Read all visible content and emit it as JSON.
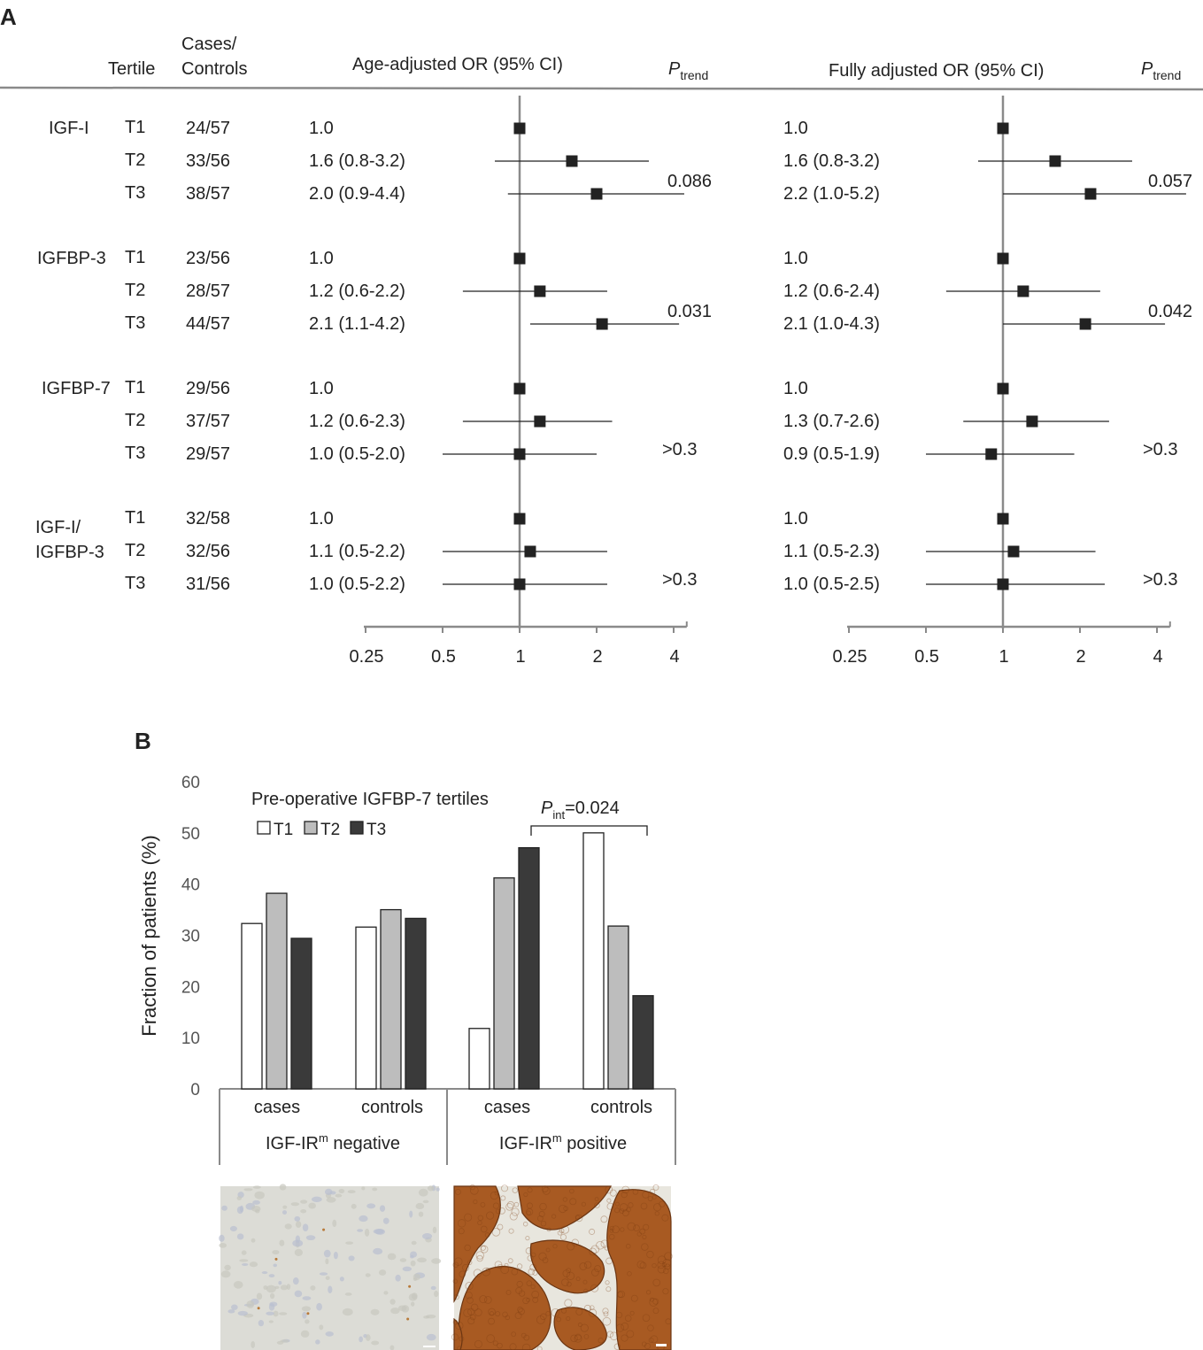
{
  "panel_a": {
    "label": "A",
    "headers": {
      "tertile": "Tertile",
      "cases_controls_line1": "Cases/",
      "cases_controls_line2": "Controls",
      "age_adjusted": "Age-adjusted OR (95% CI)",
      "fully_adjusted": "Fully adjusted OR (95% CI)",
      "p_trend_main": "P",
      "p_trend_sub": "trend"
    },
    "groups": [
      {
        "name_lines": [
          "IGF-I"
        ],
        "rows": [
          {
            "tertile": "T1",
            "cc": "24/57",
            "age_text": "1.0",
            "full_text": "1.0"
          },
          {
            "tertile": "T2",
            "cc": "33/56",
            "age_text": "1.6 (0.8-3.2)",
            "full_text": "1.6 (0.8-3.2)"
          },
          {
            "tertile": "T3",
            "cc": "38/57",
            "age_text": "2.0 (0.9-4.4)",
            "full_text": "2.2 (1.0-5.2)"
          }
        ],
        "p_age": "0.086",
        "p_full": "0.057"
      },
      {
        "name_lines": [
          "IGFBP-3"
        ],
        "rows": [
          {
            "tertile": "T1",
            "cc": "23/56",
            "age_text": "1.0",
            "full_text": "1.0"
          },
          {
            "tertile": "T2",
            "cc": "28/57",
            "age_text": "1.2 (0.6-2.2)",
            "full_text": "1.2 (0.6-2.4)"
          },
          {
            "tertile": "T3",
            "cc": "44/57",
            "age_text": "2.1 (1.1-4.2)",
            "full_text": "2.1 (1.0-4.3)"
          }
        ],
        "p_age": "0.031",
        "p_full": "0.042"
      },
      {
        "name_lines": [
          "IGFBP-7"
        ],
        "rows": [
          {
            "tertile": "T1",
            "cc": "29/56",
            "age_text": "1.0",
            "full_text": "1.0"
          },
          {
            "tertile": "T2",
            "cc": "37/57",
            "age_text": "1.2 (0.6-2.3)",
            "full_text": "1.3 (0.7-2.6)"
          },
          {
            "tertile": "T3",
            "cc": "29/57",
            "age_text": "1.0 (0.5-2.0)",
            "full_text": "0.9 (0.5-1.9)"
          }
        ],
        "p_age": ">0.3",
        "p_full": ">0.3"
      },
      {
        "name_lines": [
          "IGF-I/",
          "IGFBP-3"
        ],
        "rows": [
          {
            "tertile": "T1",
            "cc": "32/58",
            "age_text": "1.0",
            "full_text": "1.0"
          },
          {
            "tertile": "T2",
            "cc": "32/56",
            "age_text": "1.1 (0.5-2.2)",
            "full_text": "1.1 (0.5-2.3)"
          },
          {
            "tertile": "T3",
            "cc": "31/56",
            "age_text": "1.0 (0.5-2.2)",
            "full_text": "1.0 (0.5-2.5)"
          }
        ],
        "p_age": ">0.3",
        "p_full": ">0.3"
      }
    ],
    "axis_ticks": [
      "0.25",
      "0.5",
      "1",
      "2",
      "4"
    ]
  },
  "chart_data": [
    {
      "type": "scatter",
      "subtype": "forest",
      "title": "Age-adjusted OR (95% CI)",
      "x_scale": "log2",
      "xlim": [
        0.25,
        4.5
      ],
      "reference_line": 1,
      "series": [
        {
          "name": "IGF-I",
          "or": [
            1.0,
            1.6,
            2.0
          ],
          "lo": [
            null,
            0.8,
            0.9
          ],
          "hi": [
            null,
            3.2,
            4.4
          ]
        },
        {
          "name": "IGFBP-3",
          "or": [
            1.0,
            1.2,
            2.1
          ],
          "lo": [
            null,
            0.6,
            1.1
          ],
          "hi": [
            null,
            2.2,
            4.2
          ]
        },
        {
          "name": "IGFBP-7",
          "or": [
            1.0,
            1.2,
            1.0
          ],
          "lo": [
            null,
            0.6,
            0.5
          ],
          "hi": [
            null,
            2.3,
            2.0
          ]
        },
        {
          "name": "IGF-I/IGFBP-3",
          "or": [
            1.0,
            1.1,
            1.0
          ],
          "lo": [
            null,
            0.5,
            0.5
          ],
          "hi": [
            null,
            2.2,
            2.2
          ]
        }
      ]
    },
    {
      "type": "scatter",
      "subtype": "forest",
      "title": "Fully adjusted OR (95% CI)",
      "x_scale": "log2",
      "xlim": [
        0.25,
        4.5
      ],
      "reference_line": 1,
      "series": [
        {
          "name": "IGF-I",
          "or": [
            1.0,
            1.6,
            2.2
          ],
          "lo": [
            null,
            0.8,
            1.0
          ],
          "hi": [
            null,
            3.2,
            5.2
          ]
        },
        {
          "name": "IGFBP-3",
          "or": [
            1.0,
            1.2,
            2.1
          ],
          "lo": [
            null,
            0.6,
            1.0
          ],
          "hi": [
            null,
            2.4,
            4.3
          ]
        },
        {
          "name": "IGFBP-7",
          "or": [
            1.0,
            1.3,
            0.9
          ],
          "lo": [
            null,
            0.7,
            0.5
          ],
          "hi": [
            null,
            2.6,
            1.9
          ]
        },
        {
          "name": "IGF-I/IGFBP-3",
          "or": [
            1.0,
            1.1,
            1.0
          ],
          "lo": [
            null,
            0.5,
            0.5
          ],
          "hi": [
            null,
            2.3,
            2.5
          ]
        }
      ]
    },
    {
      "type": "bar",
      "label": "B",
      "ylabel": "Fraction of patients (%)",
      "ylim": [
        0,
        60
      ],
      "yticks": [
        0,
        10,
        20,
        30,
        40,
        50,
        60
      ],
      "legend_title": "Pre-operative IGFBP-7 tertiles",
      "legend_position": "top-left",
      "categories": [
        "cases",
        "controls",
        "cases",
        "controls"
      ],
      "groups": [
        {
          "label_main": "IGF-IR",
          "label_sup": "m",
          "label_rest": " negative"
        },
        {
          "label_main": "IGF-IR",
          "label_sup": "m",
          "label_rest": " positive"
        }
      ],
      "series": [
        {
          "name": "T1",
          "color": "#ffffff",
          "values": [
            32.3,
            31.6,
            11.8,
            50.0
          ]
        },
        {
          "name": "T2",
          "color": "#bdbdbd",
          "values": [
            38.2,
            35.0,
            41.2,
            31.8
          ]
        },
        {
          "name": "T3",
          "color": "#3a3a3a",
          "values": [
            29.4,
            33.3,
            47.1,
            18.2
          ]
        }
      ],
      "annotation": {
        "main": "P",
        "sub": "int",
        "rest": "=0.024"
      }
    }
  ],
  "micrographs": [
    {
      "name": "IGF-IRm negative staining",
      "background": "#dcdcd6"
    },
    {
      "name": "IGF-IRm positive staining",
      "background": "#e8e6de",
      "stain": "#a85a22"
    }
  ]
}
